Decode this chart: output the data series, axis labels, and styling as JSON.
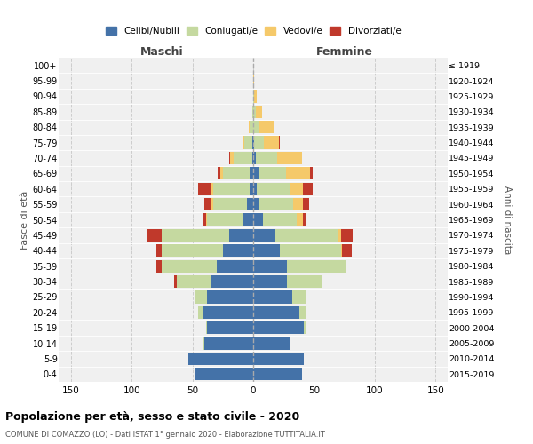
{
  "age_groups": [
    "0-4",
    "5-9",
    "10-14",
    "15-19",
    "20-24",
    "25-29",
    "30-34",
    "35-39",
    "40-44",
    "45-49",
    "50-54",
    "55-59",
    "60-64",
    "65-69",
    "70-74",
    "75-79",
    "80-84",
    "85-89",
    "90-94",
    "95-99",
    "100+"
  ],
  "birth_years": [
    "2015-2019",
    "2010-2014",
    "2005-2009",
    "2000-2004",
    "1995-1999",
    "1990-1994",
    "1985-1989",
    "1980-1984",
    "1975-1979",
    "1970-1974",
    "1965-1969",
    "1960-1964",
    "1955-1959",
    "1950-1954",
    "1945-1949",
    "1940-1944",
    "1935-1939",
    "1930-1934",
    "1925-1929",
    "1920-1924",
    "≤ 1919"
  ],
  "male": {
    "celibi": [
      48,
      53,
      40,
      38,
      42,
      38,
      35,
      30,
      25,
      20,
      8,
      5,
      3,
      3,
      1,
      1,
      0,
      0,
      0,
      0,
      0
    ],
    "coniugati": [
      0,
      0,
      1,
      1,
      3,
      10,
      28,
      45,
      50,
      55,
      30,
      28,
      30,
      22,
      15,
      6,
      3,
      1,
      0,
      0,
      0
    ],
    "vedovi": [
      0,
      0,
      0,
      0,
      0,
      0,
      0,
      0,
      0,
      0,
      1,
      1,
      2,
      2,
      3,
      2,
      1,
      0,
      0,
      0,
      0
    ],
    "divorziati": [
      0,
      0,
      0,
      0,
      0,
      0,
      2,
      5,
      5,
      13,
      3,
      6,
      10,
      2,
      1,
      0,
      0,
      0,
      0,
      0,
      0
    ]
  },
  "female": {
    "nubili": [
      40,
      42,
      30,
      42,
      38,
      32,
      28,
      28,
      22,
      18,
      8,
      5,
      3,
      5,
      2,
      1,
      0,
      0,
      0,
      0,
      0
    ],
    "coniugate": [
      0,
      0,
      0,
      2,
      5,
      12,
      28,
      48,
      50,
      52,
      28,
      28,
      28,
      22,
      18,
      8,
      5,
      2,
      1,
      0,
      0
    ],
    "vedove": [
      0,
      0,
      0,
      0,
      0,
      0,
      0,
      0,
      1,
      2,
      5,
      8,
      10,
      20,
      20,
      12,
      12,
      5,
      2,
      1,
      0
    ],
    "divorziate": [
      0,
      0,
      0,
      0,
      0,
      0,
      0,
      0,
      8,
      10,
      3,
      5,
      8,
      2,
      0,
      1,
      0,
      0,
      0,
      0,
      0
    ]
  },
  "colors": {
    "celibi_nubili": "#4472a8",
    "coniugati": "#c5d9a0",
    "vedovi": "#f5c96a",
    "divorziati": "#c0392b"
  },
  "xlim": 160,
  "title": "Popolazione per età, sesso e stato civile - 2020",
  "subtitle": "COMUNE DI COMAZZO (LO) - Dati ISTAT 1° gennaio 2020 - Elaborazione TUTTITALIA.IT",
  "ylabel_left": "Fasce di età",
  "ylabel_right": "Anni di nascita",
  "xlabel_left": "Maschi",
  "xlabel_right": "Femmine",
  "bg_color": "#f0f0f0",
  "grid_color": "#cccccc",
  "legend_labels": [
    "Celibi/Nubili",
    "Coniugati/e",
    "Vedovi/e",
    "Divorziati/e"
  ]
}
